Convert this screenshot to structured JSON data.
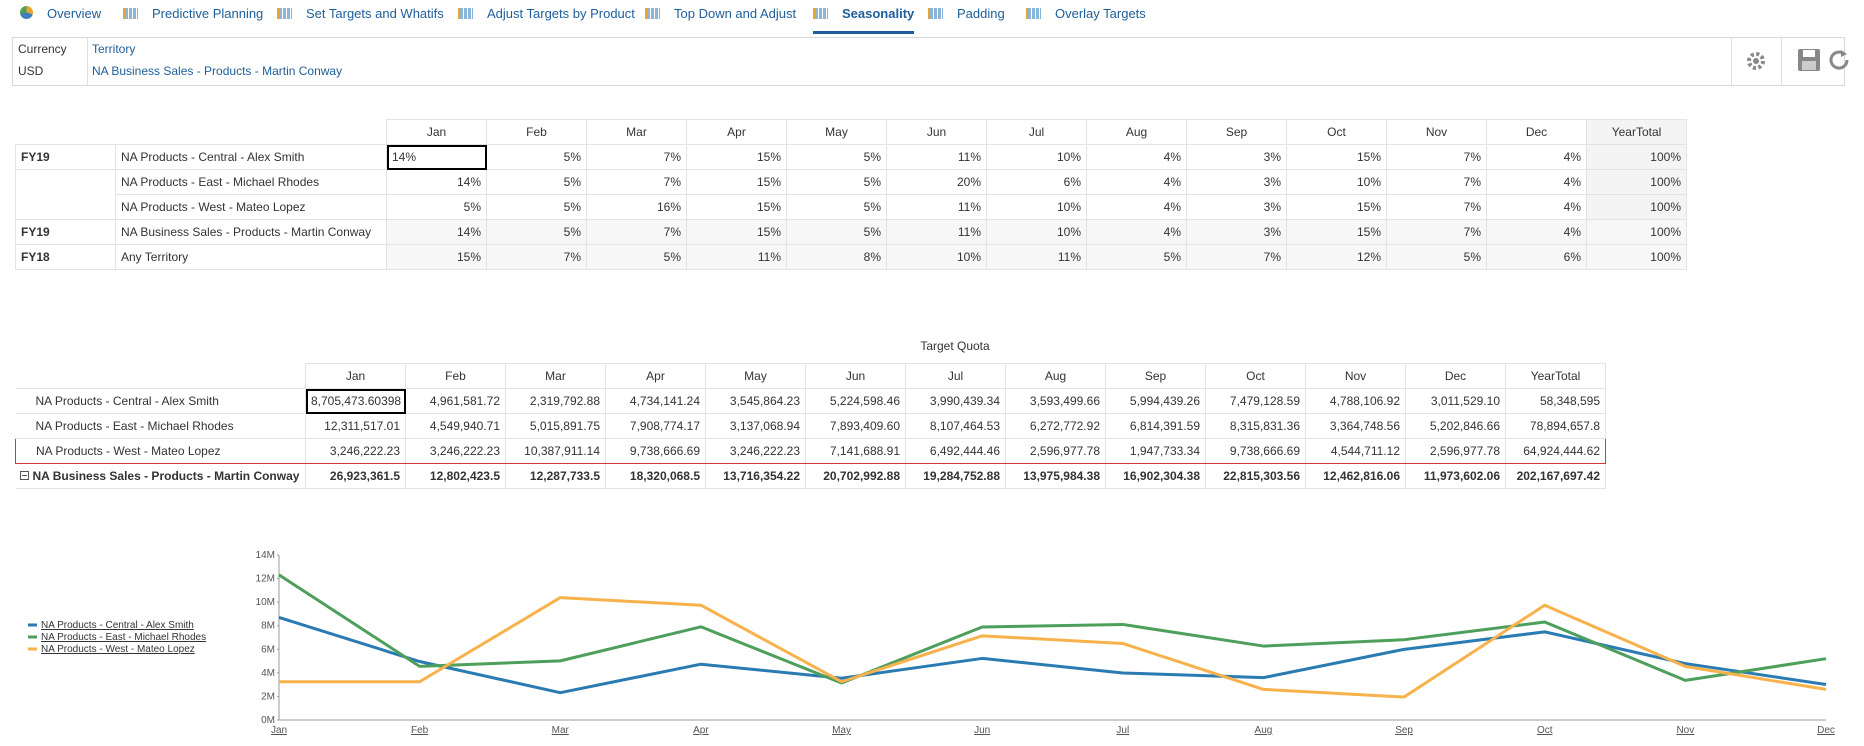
{
  "tabs": [
    {
      "label": "Overview"
    },
    {
      "label": "Predictive Planning"
    },
    {
      "label": "Set Targets and Whatifs"
    },
    {
      "label": "Adjust Targets by Product"
    },
    {
      "label": "Top Down and Adjust"
    },
    {
      "label": "Seasonality",
      "active": true
    },
    {
      "label": "Padding"
    },
    {
      "label": "Overlay Targets"
    }
  ],
  "header": {
    "currency_label": "Currency",
    "currency": "USD",
    "territory_label": "Territory",
    "territory": "NA Business Sales - Products - Martin Conway"
  },
  "table1": {
    "columns": [
      "Jan",
      "Feb",
      "Mar",
      "Apr",
      "May",
      "Jun",
      "Jul",
      "Aug",
      "Sep",
      "Oct",
      "Nov",
      "Dec",
      "YearTotal"
    ],
    "rows": [
      {
        "year": "FY19",
        "territory": "NA Products - Central - Alex Smith",
        "values": [
          "14%",
          "5%",
          "7%",
          "15%",
          "5%",
          "11%",
          "10%",
          "4%",
          "3%",
          "15%",
          "7%",
          "4%",
          "100%"
        ]
      },
      {
        "territory": "NA Products - East - Michael Rhodes",
        "values": [
          "14%",
          "5%",
          "7%",
          "15%",
          "5%",
          "20%",
          "6%",
          "4%",
          "3%",
          "10%",
          "7%",
          "4%",
          "100%"
        ]
      },
      {
        "territory": "NA Products - West - Mateo Lopez",
        "values": [
          "5%",
          "5%",
          "16%",
          "15%",
          "5%",
          "11%",
          "10%",
          "4%",
          "3%",
          "15%",
          "7%",
          "4%",
          "100%"
        ]
      },
      {
        "year": "FY19",
        "territory": "NA Business Sales - Products - Martin Conway",
        "values": [
          "14%",
          "5%",
          "7%",
          "15%",
          "5%",
          "11%",
          "10%",
          "4%",
          "3%",
          "15%",
          "7%",
          "4%",
          "100%"
        ]
      },
      {
        "year": "FY18",
        "territory": "Any Territory",
        "values": [
          "15%",
          "7%",
          "5%",
          "11%",
          "8%",
          "10%",
          "11%",
          "5%",
          "7%",
          "12%",
          "5%",
          "6%",
          "100%"
        ]
      }
    ]
  },
  "table2": {
    "title": "Target Quota",
    "columns": [
      "Jan",
      "Feb",
      "Mar",
      "Apr",
      "May",
      "Jun",
      "Jul",
      "Aug",
      "Sep",
      "Oct",
      "Nov",
      "Dec",
      "YearTotal"
    ],
    "rows": [
      {
        "name": "NA Products - Central - Alex Smith",
        "values": [
          "8,705,473.60398",
          "4,961,581.72",
          "2,319,792.88",
          "4,734,141.24",
          "3,545,864.23",
          "5,224,598.46",
          "3,990,439.34",
          "3,593,499.66",
          "5,994,439.26",
          "7,479,128.59",
          "4,788,106.92",
          "3,011,529.10",
          "58,348,595"
        ]
      },
      {
        "name": "NA Products - East - Michael Rhodes",
        "values": [
          "12,311,517.01",
          "4,549,940.71",
          "5,015,891.75",
          "7,908,774.17",
          "3,137,068.94",
          "7,893,409.60",
          "8,107,464.53",
          "6,272,772.92",
          "6,814,391.59",
          "8,315,831.36",
          "3,364,748.56",
          "5,202,846.66",
          "78,894,657.8"
        ]
      },
      {
        "name": "NA Products - West - Mateo Lopez",
        "values": [
          "3,246,222.23",
          "3,246,222.23",
          "10,387,911.14",
          "9,738,666.69",
          "3,246,222.23",
          "7,141,688.91",
          "6,492,444.46",
          "2,596,977.78",
          "1,947,733.34",
          "9,738,666.69",
          "4,544,711.12",
          "2,596,977.78",
          "64,924,444.62"
        ]
      },
      {
        "name": "NA Business Sales - Products - Martin Conway",
        "total": true,
        "values": [
          "26,923,361.5",
          "12,802,423.5",
          "12,287,733.5",
          "18,320,068.5",
          "13,716,354.22",
          "20,702,992.88",
          "19,284,752.88",
          "13,975,984.38",
          "16,902,304.38",
          "22,815,303.56",
          "12,462,816.06",
          "11,973,602.06",
          "202,167,697.42"
        ]
      }
    ]
  },
  "chart_data": {
    "type": "line",
    "categories": [
      "Jan",
      "Feb",
      "Mar",
      "Apr",
      "May",
      "Jun",
      "Jul",
      "Aug",
      "Sep",
      "Oct",
      "Nov",
      "Dec"
    ],
    "ylim": [
      0,
      14000000
    ],
    "yticks": [
      {
        "value": 0,
        "label": "0M"
      },
      {
        "value": 2000000,
        "label": "2M"
      },
      {
        "value": 4000000,
        "label": "4M"
      },
      {
        "value": 6000000,
        "label": "6M"
      },
      {
        "value": 8000000,
        "label": "8M"
      },
      {
        "value": 10000000,
        "label": "10M"
      },
      {
        "value": 12000000,
        "label": "12M"
      },
      {
        "value": 14000000,
        "label": "14M"
      }
    ],
    "legend": "left",
    "series": [
      {
        "name": "NA Products - Central - Alex Smith",
        "color": "#2b7bb3",
        "values": [
          8705473.60398,
          4961581.72,
          2319792.88,
          4734141.24,
          3545864.23,
          5224598.46,
          3990439.34,
          3593499.66,
          5994439.26,
          7479128.59,
          4788106.92,
          3011529.1
        ]
      },
      {
        "name": "NA Products - East - Michael Rhodes",
        "color": "#4f9f5c",
        "values": [
          12311517.01,
          4549940.71,
          5015891.75,
          7908774.17,
          3137068.94,
          7893409.6,
          8107464.53,
          6272772.92,
          6814391.59,
          8315831.36,
          3364748.56,
          5202846.66
        ]
      },
      {
        "name": "NA Products - West - Mateo Lopez",
        "color": "#f8b24c",
        "values": [
          3246222.23,
          3246222.23,
          10387911.14,
          9738666.69,
          3246222.23,
          7141688.91,
          6492444.46,
          2596977.78,
          1947733.34,
          9738666.69,
          4544711.12,
          2596977.78
        ]
      }
    ]
  }
}
